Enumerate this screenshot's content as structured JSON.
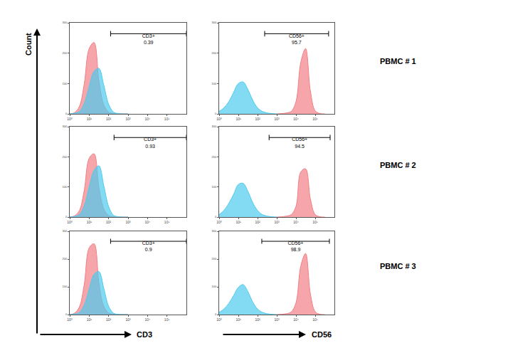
{
  "figure": {
    "ylabel": "Count",
    "xlabels": [
      "CD3",
      "CD56"
    ],
    "row_labels": [
      "PBMC # 1",
      "PBMC # 2",
      "PBMC # 3"
    ]
  },
  "chart_data": [
    {
      "type": "area",
      "log": "x",
      "xlim": [
        1,
        1000000
      ],
      "xticks": [
        {
          "value": 1,
          "label": "10⁰"
        },
        {
          "value": 10,
          "label": "10¹"
        },
        {
          "value": 100,
          "label": "10²"
        },
        {
          "value": 1000,
          "label": "10³"
        },
        {
          "value": 10000,
          "label": "10⁴"
        },
        {
          "value": 100000,
          "label": "10⁵"
        }
      ],
      "ylim": [
        0,
        300
      ],
      "yticks": [
        0,
        100,
        200,
        300
      ],
      "series": [
        {
          "color": "#f27f86",
          "x": [
            1,
            1.78,
            3.16,
            5.62,
            10,
            17.8,
            31.6,
            56.2,
            100,
            178,
            316,
            562,
            1000
          ],
          "values": [
            0,
            4,
            25,
            100,
            215,
            235,
            110,
            30,
            6,
            1,
            0,
            0,
            0
          ]
        },
        {
          "color": "#4fcbee",
          "x": [
            1,
            1.78,
            3.16,
            5.62,
            10,
            17.8,
            31.6,
            56.2,
            100,
            178,
            316,
            562,
            1000
          ],
          "values": [
            0,
            2,
            8,
            35,
            90,
            140,
            150,
            95,
            32,
            6,
            1,
            0,
            0
          ]
        }
      ],
      "gate": {
        "label": "CD3+",
        "value": 0.39,
        "range": [
          126,
          1000000
        ]
      }
    },
    {
      "type": "area",
      "log": "x",
      "xlim": [
        1,
        1000000
      ],
      "xticks": [
        {
          "value": 1,
          "label": "10⁰"
        },
        {
          "value": 10,
          "label": "10¹"
        },
        {
          "value": 100,
          "label": "10²"
        },
        {
          "value": 1000,
          "label": "10³"
        },
        {
          "value": 10000,
          "label": "10⁴"
        },
        {
          "value": 100000,
          "label": "10⁵"
        }
      ],
      "ylim": [
        0,
        300
      ],
      "yticks": [
        0,
        100,
        200,
        300
      ],
      "series": [
        {
          "color": "#4fcbee",
          "x": [
            1,
            1.78,
            3.16,
            5.62,
            10,
            17.8,
            31.6,
            56.2,
            100,
            178,
            316,
            562,
            1000
          ],
          "values": [
            8,
            20,
            40,
            70,
            100,
            105,
            80,
            45,
            20,
            8,
            3,
            1,
            0
          ]
        },
        {
          "color": "#f27f86",
          "x": [
            1000,
            1778,
            3162,
            5623,
            10000,
            17783,
            31623,
            56234,
            100000,
            177828,
            316228
          ],
          "values": [
            0,
            1,
            3,
            8,
            40,
            170,
            215,
            75,
            10,
            1,
            0
          ]
        }
      ],
      "gate": {
        "label": "CD56+",
        "value": 95.7,
        "range": [
          234,
          500000
        ]
      }
    },
    {
      "type": "area",
      "log": "x",
      "xlim": [
        1,
        1000000
      ],
      "xticks": [
        {
          "value": 1,
          "label": "10⁰"
        },
        {
          "value": 10,
          "label": "10¹"
        },
        {
          "value": 100,
          "label": "10²"
        },
        {
          "value": 1000,
          "label": "10³"
        },
        {
          "value": 10000,
          "label": "10⁴"
        },
        {
          "value": 100000,
          "label": "10⁵"
        }
      ],
      "ylim": [
        0,
        300
      ],
      "yticks": [
        0,
        100,
        200,
        300
      ],
      "series": [
        {
          "color": "#f27f86",
          "x": [
            1,
            1.78,
            3.16,
            5.62,
            10,
            17.8,
            31.6,
            56.2,
            100,
            178,
            316,
            562,
            1000
          ],
          "values": [
            0,
            4,
            22,
            90,
            195,
            210,
            100,
            28,
            5,
            1,
            0,
            0,
            0
          ]
        },
        {
          "color": "#4fcbee",
          "x": [
            1,
            1.78,
            3.16,
            5.62,
            10,
            17.8,
            31.6,
            56.2,
            100,
            178,
            316,
            562,
            1000
          ],
          "values": [
            0,
            2,
            9,
            38,
            100,
            155,
            170,
            105,
            35,
            6,
            1,
            0,
            0
          ]
        }
      ],
      "gate": {
        "label": "CD3+",
        "value": 0.93,
        "range": [
          190,
          1000000
        ]
      }
    },
    {
      "type": "area",
      "log": "x",
      "xlim": [
        1,
        1000000
      ],
      "xticks": [
        {
          "value": 1,
          "label": "10⁰"
        },
        {
          "value": 10,
          "label": "10¹"
        },
        {
          "value": 100,
          "label": "10²"
        },
        {
          "value": 1000,
          "label": "10³"
        },
        {
          "value": 10000,
          "label": "10⁴"
        },
        {
          "value": 100000,
          "label": "10⁵"
        }
      ],
      "ylim": [
        0,
        300
      ],
      "yticks": [
        0,
        100,
        200,
        300
      ],
      "series": [
        {
          "color": "#4fcbee",
          "x": [
            1,
            1.78,
            3.16,
            5.62,
            10,
            17.8,
            31.6,
            56.2,
            100,
            178,
            316,
            562,
            1000
          ],
          "values": [
            8,
            22,
            45,
            75,
            108,
            112,
            85,
            48,
            22,
            8,
            3,
            1,
            0
          ]
        },
        {
          "color": "#f27f86",
          "x": [
            1000,
            1778,
            3162,
            5623,
            10000,
            17783,
            31623,
            56234,
            100000,
            177828,
            316228
          ],
          "values": [
            0,
            1,
            3,
            8,
            35,
            150,
            160,
            60,
            8,
            1,
            0
          ]
        }
      ],
      "gate": {
        "label": "CD56+",
        "value": 94.5,
        "range": [
          400,
          600000
        ]
      }
    },
    {
      "type": "area",
      "log": "x",
      "xlim": [
        1,
        1000000
      ],
      "xticks": [
        {
          "value": 1,
          "label": "10⁰"
        },
        {
          "value": 10,
          "label": "10¹"
        },
        {
          "value": 100,
          "label": "10²"
        },
        {
          "value": 1000,
          "label": "10³"
        },
        {
          "value": 10000,
          "label": "10⁴"
        },
        {
          "value": 100000,
          "label": "10⁵"
        }
      ],
      "ylim": [
        0,
        300
      ],
      "yticks": [
        0,
        100,
        200,
        300
      ],
      "series": [
        {
          "color": "#f27f86",
          "x": [
            1,
            1.78,
            3.16,
            5.62,
            10,
            17.8,
            31.6,
            56.2,
            100,
            178,
            316,
            562,
            1000
          ],
          "values": [
            0,
            5,
            28,
            110,
            240,
            255,
            115,
            30,
            6,
            1,
            0,
            0,
            0
          ]
        },
        {
          "color": "#4fcbee",
          "x": [
            1,
            1.78,
            3.16,
            5.62,
            10,
            17.8,
            31.6,
            56.2,
            100,
            178,
            316,
            562,
            1000
          ],
          "values": [
            0,
            2,
            8,
            35,
            92,
            145,
            155,
            95,
            30,
            5,
            1,
            0,
            0
          ]
        }
      ],
      "gate": {
        "label": "CD3+",
        "value": 0.9,
        "range": [
          126,
          1000000
        ]
      }
    },
    {
      "type": "area",
      "log": "x",
      "xlim": [
        1,
        1000000
      ],
      "xticks": [
        {
          "value": 1,
          "label": "10⁰"
        },
        {
          "value": 10,
          "label": "10¹"
        },
        {
          "value": 100,
          "label": "10²"
        },
        {
          "value": 1000,
          "label": "10³"
        },
        {
          "value": 10000,
          "label": "10⁴"
        },
        {
          "value": 100000,
          "label": "10⁵"
        }
      ],
      "ylim": [
        0,
        300
      ],
      "yticks": [
        0,
        100,
        200,
        300
      ],
      "series": [
        {
          "color": "#4fcbee",
          "x": [
            1,
            1.78,
            3.16,
            5.62,
            10,
            17.8,
            31.6,
            56.2,
            100,
            178,
            316,
            562,
            1000
          ],
          "values": [
            8,
            20,
            40,
            68,
            98,
            108,
            82,
            45,
            20,
            8,
            3,
            1,
            0
          ]
        },
        {
          "color": "#f27f86",
          "x": [
            1000,
            1778,
            3162,
            5623,
            10000,
            17783,
            31623,
            56234,
            100000,
            177828,
            316228
          ],
          "values": [
            0,
            1,
            3,
            9,
            42,
            175,
            220,
            75,
            10,
            1,
            0
          ]
        }
      ],
      "gate": {
        "label": "CD56+",
        "value": 98.9,
        "range": [
          166,
          550000
        ]
      }
    }
  ]
}
